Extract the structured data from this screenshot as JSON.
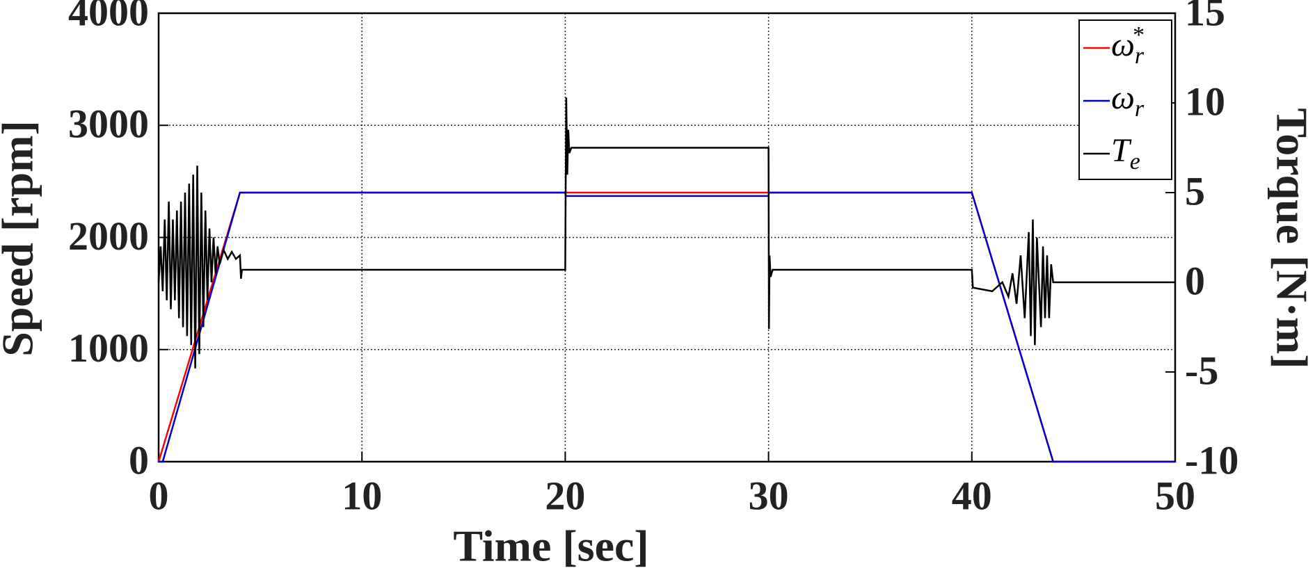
{
  "chart_data": {
    "type": "line",
    "xlabel": "Time [sec]",
    "ylabel": "Speed [rpm]",
    "y2label": "Torque [N·m]",
    "xlim": [
      0,
      50
    ],
    "xticks": [
      0,
      10,
      20,
      30,
      40,
      50
    ],
    "ylim": [
      0,
      4000
    ],
    "yticks": [
      0,
      1000,
      2000,
      3000,
      4000
    ],
    "y2lim": [
      -10,
      15
    ],
    "y2ticks": [
      -10,
      -5,
      0,
      5,
      10,
      15
    ],
    "grid": true,
    "legend": "upper right",
    "series": [
      {
        "name": "ωr*",
        "color": "#ff0000",
        "x": [
          0,
          4,
          40,
          44,
          50
        ],
        "values": [
          0,
          2400,
          2400,
          0,
          0
        ]
      },
      {
        "name": "ωr",
        "color": "#0000cc",
        "x": [
          0,
          0.2,
          4,
          20,
          20.02,
          30,
          30.02,
          40,
          44,
          50
        ],
        "values": [
          0,
          0,
          2400,
          2400,
          2370,
          2370,
          2400,
          2400,
          0,
          0
        ]
      },
      {
        "name": "Te",
        "color": "#000000",
        "axis": "y2",
        "x": [
          0,
          0.1,
          0.2,
          0.3,
          0.4,
          0.5,
          0.6,
          0.7,
          0.8,
          0.9,
          1.0,
          1.1,
          1.2,
          1.3,
          1.4,
          1.5,
          1.6,
          1.7,
          1.8,
          1.9,
          2.0,
          2.1,
          2.2,
          2.3,
          2.4,
          2.5,
          2.6,
          2.7,
          2.8,
          2.9,
          3.0,
          3.2,
          3.4,
          3.6,
          3.8,
          4.0,
          4.05,
          4.1,
          20,
          20.02,
          20.05,
          20.1,
          20.15,
          20.2,
          20.3,
          30,
          30.02,
          30.05,
          30.1,
          30.2,
          40,
          40.05,
          41,
          41.5,
          41.8,
          42,
          42.2,
          42.4,
          42.6,
          42.8,
          42.9,
          43,
          43.1,
          43.2,
          43.4,
          43.5,
          43.6,
          43.7,
          43.8,
          43.9,
          44,
          50
        ],
        "values": [
          0,
          2,
          -0.5,
          3.5,
          -1,
          4.5,
          -1.5,
          3.5,
          -1,
          4,
          -2,
          4.5,
          -2.5,
          5,
          -3,
          5.5,
          -3.5,
          6,
          -4.8,
          6.5,
          -4,
          5,
          -2.5,
          4,
          -1,
          3,
          0,
          2.5,
          0.5,
          2,
          1,
          1.8,
          1.3,
          1.7,
          1.3,
          1.5,
          0.2,
          0.7,
          0.7,
          5,
          10.3,
          6,
          8.5,
          7.2,
          7.5,
          7.5,
          -2.6,
          1.5,
          0.3,
          0.7,
          0.7,
          -0.3,
          -0.5,
          0,
          -0.8,
          0.5,
          -1.2,
          1.5,
          -2,
          2.8,
          -3,
          3.5,
          -3.5,
          2.5,
          -2.5,
          2,
          -2,
          1.5,
          -2,
          1,
          0,
          0
        ]
      }
    ]
  }
}
